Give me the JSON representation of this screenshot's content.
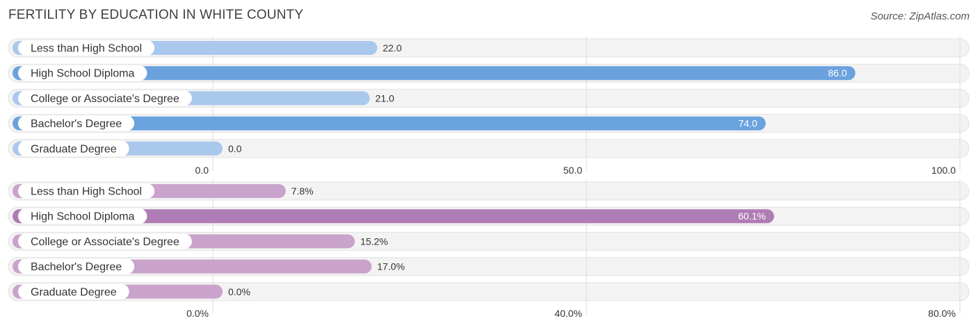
{
  "title": "FERTILITY BY EDUCATION IN WHITE COUNTY",
  "source": "Source: ZipAtlas.com",
  "chart_data": [
    {
      "type": "bar",
      "orientation": "horizontal",
      "categories": [
        "Less than High School",
        "High School Diploma",
        "College or Associate's Degree",
        "Bachelor's Degree",
        "Graduate Degree"
      ],
      "values": [
        22.0,
        86.0,
        21.0,
        74.0,
        0.0
      ],
      "value_labels": [
        "22.0",
        "86.0",
        "21.0",
        "74.0",
        "0.0"
      ],
      "xlim": [
        0,
        100
      ],
      "ticks": [
        0,
        50,
        100
      ],
      "tick_labels": [
        "0.0",
        "50.0",
        "100.0"
      ],
      "grid": true,
      "colors": {
        "normal": "#a9c8ec",
        "highlight": "#6aa2de"
      },
      "highlight_threshold": 50
    },
    {
      "type": "bar",
      "orientation": "horizontal",
      "categories": [
        "Less than High School",
        "High School Diploma",
        "College or Associate's Degree",
        "Bachelor's Degree",
        "Graduate Degree"
      ],
      "values": [
        7.8,
        60.1,
        15.2,
        17.0,
        0.0
      ],
      "value_labels": [
        "7.8%",
        "60.1%",
        "15.2%",
        "17.0%",
        "0.0%"
      ],
      "xlim": [
        0,
        80
      ],
      "ticks": [
        0,
        40,
        80
      ],
      "tick_labels": [
        "0.0%",
        "40.0%",
        "80.0%"
      ],
      "grid": true,
      "colors": {
        "normal": "#c9a3cc",
        "highlight": "#b07cb5"
      },
      "highlight_threshold": 40
    }
  ]
}
